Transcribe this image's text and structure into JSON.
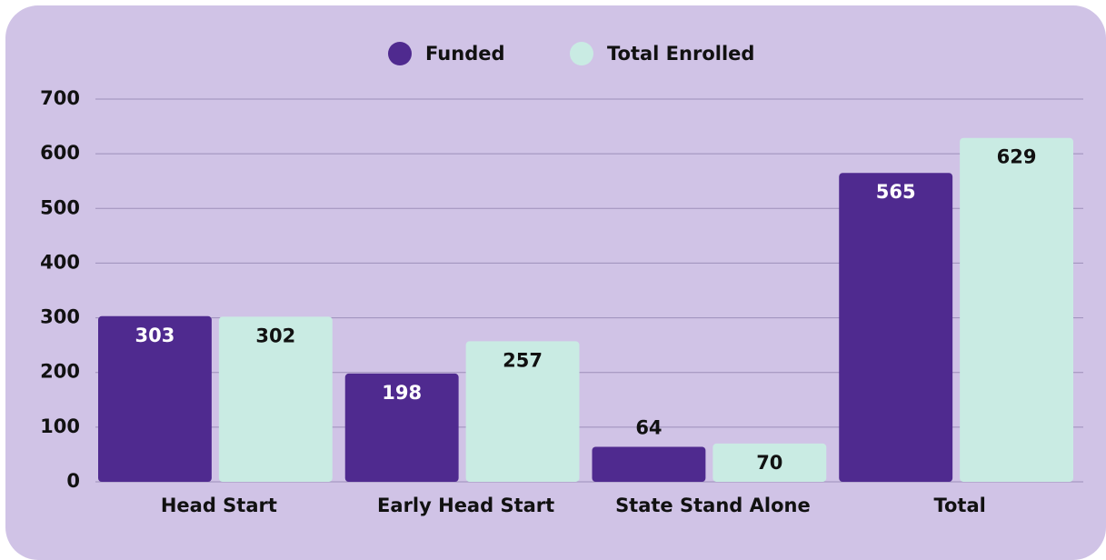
{
  "chart_data": {
    "type": "bar",
    "categories": [
      "Head Start",
      "Early Head Start",
      "State Stand Alone",
      "Total"
    ],
    "series": [
      {
        "name": "Funded",
        "color": "#4f2a8f",
        "values": [
          303,
          198,
          64,
          565
        ]
      },
      {
        "name": "Total Enrolled",
        "color": "#c9ebe3",
        "values": [
          302,
          257,
          70,
          629
        ]
      }
    ],
    "ylim": [
      0,
      700
    ],
    "yticks": [
      0,
      100,
      200,
      300,
      400,
      500,
      600,
      700
    ],
    "grid": true,
    "legend": "top"
  }
}
